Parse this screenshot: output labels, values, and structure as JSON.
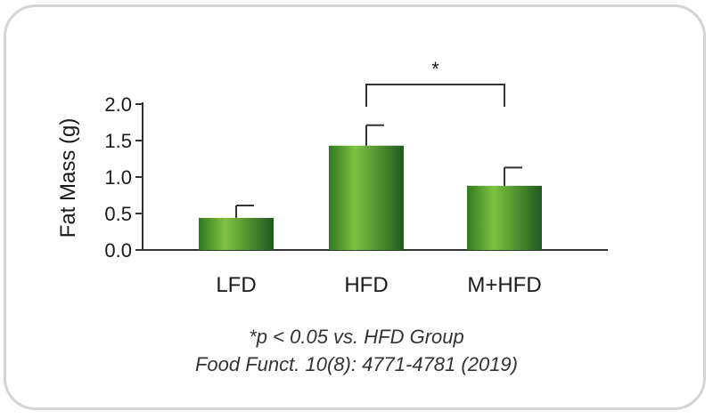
{
  "chart_data": {
    "type": "bar",
    "categories": [
      "LFD",
      "HFD",
      "M+HFD"
    ],
    "values": [
      0.44,
      1.43,
      0.88
    ],
    "errors": [
      0.17,
      0.28,
      0.25
    ],
    "ylabel": "Fat Mass (g)",
    "xlabel": "",
    "ylim": [
      0,
      2.0
    ],
    "yticks": [
      0.0,
      0.5,
      1.0,
      1.5,
      2.0
    ],
    "ytick_labels": [
      "0.0",
      "0.5",
      "1.0",
      "1.5",
      "2.0"
    ],
    "grid": false,
    "significance": {
      "between": [
        "HFD",
        "M+HFD"
      ],
      "label": "*"
    },
    "colors": {
      "bar_light": "#7fc241",
      "bar_dark": "#1f5a1f",
      "bar_mid": "#3f8a26",
      "axis": "#333333"
    }
  },
  "footnote": "*p < 0.05 vs. HFD Group",
  "citation": "Food Funct. 10(8): 4771-4781 (2019)"
}
